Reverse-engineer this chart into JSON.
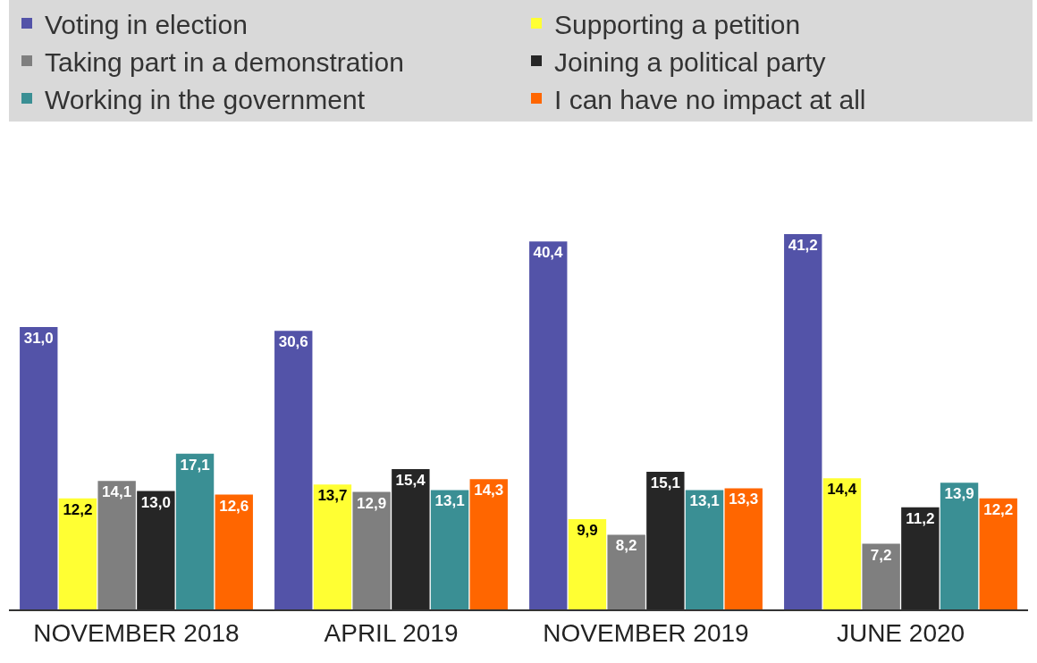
{
  "chart_data": {
    "type": "bar",
    "categories": [
      "NOVEMBER 2018",
      "APRIL 2019",
      "NOVEMBER 2019",
      "JUNE 2020"
    ],
    "series": [
      {
        "name": "Voting in election",
        "color": "#5353a8",
        "values": [
          31.0,
          30.6,
          40.4,
          41.2
        ],
        "value_labels": [
          "31,0",
          "30,6",
          "40,4",
          "41,2"
        ]
      },
      {
        "name": "Supporting a petition",
        "color": "#ffff33",
        "values": [
          12.2,
          13.7,
          9.9,
          14.4
        ],
        "value_labels": [
          "12,2",
          "13,7",
          "9,9",
          "14,4"
        ]
      },
      {
        "name": "Taking part in a demonstration",
        "color": "#7f7f7f",
        "values": [
          14.1,
          12.9,
          8.2,
          7.2
        ],
        "value_labels": [
          "14,1",
          "12,9",
          "8,2",
          "7,2"
        ]
      },
      {
        "name": "Joining a political party",
        "color": "#262626",
        "values": [
          13.0,
          15.4,
          15.1,
          11.2
        ],
        "value_labels": [
          "13,0",
          "15,4",
          "15,1",
          "11,2"
        ]
      },
      {
        "name": "Working in the government",
        "color": "#3a8f94",
        "values": [
          17.1,
          13.1,
          13.1,
          13.9
        ],
        "value_labels": [
          "17,1",
          "13,1",
          "13,1",
          "13,9"
        ]
      },
      {
        "name": "I can have no impact at all",
        "color": "#ff6600",
        "values": [
          12.6,
          14.3,
          13.3,
          12.2
        ],
        "value_labels": [
          "12,6",
          "14,3",
          "13,3",
          "12,2"
        ]
      }
    ],
    "legend": "top"
  }
}
